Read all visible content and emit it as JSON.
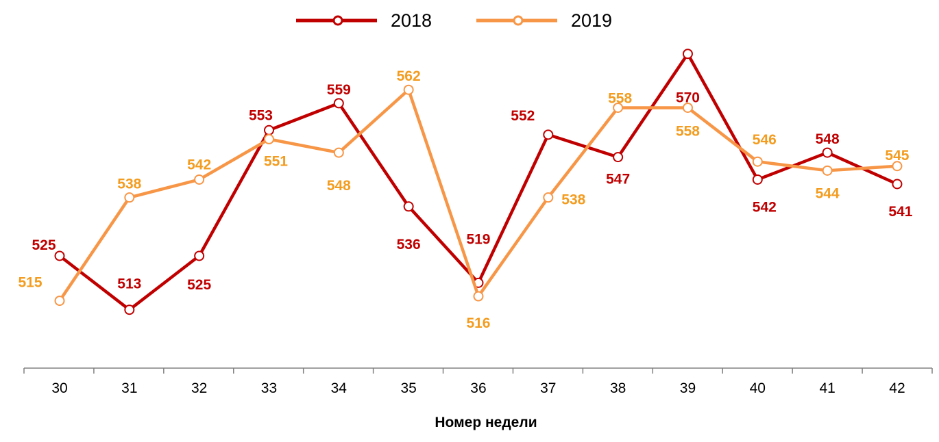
{
  "chart_data": {
    "type": "line",
    "title": "",
    "xlabel": "Номер недели",
    "ylabel": "",
    "categories": [
      "30",
      "31",
      "32",
      "33",
      "34",
      "35",
      "36",
      "37",
      "38",
      "39",
      "40",
      "41",
      "42"
    ],
    "ylim": [
      500,
      582
    ],
    "grid": false,
    "legend_position": "top",
    "series": [
      {
        "name": "2018",
        "color": "#c00000",
        "label_color": "#c00000",
        "values": [
          525,
          513,
          525,
          553,
          559,
          536,
          519,
          552,
          547,
          570,
          542,
          548,
          541
        ]
      },
      {
        "name": "2019",
        "color": "#f79646",
        "label_color": "#f39c1f",
        "values": [
          515,
          538,
          542,
          551,
          548,
          562,
          516,
          538,
          558,
          558,
          546,
          544,
          545
        ]
      }
    ]
  }
}
